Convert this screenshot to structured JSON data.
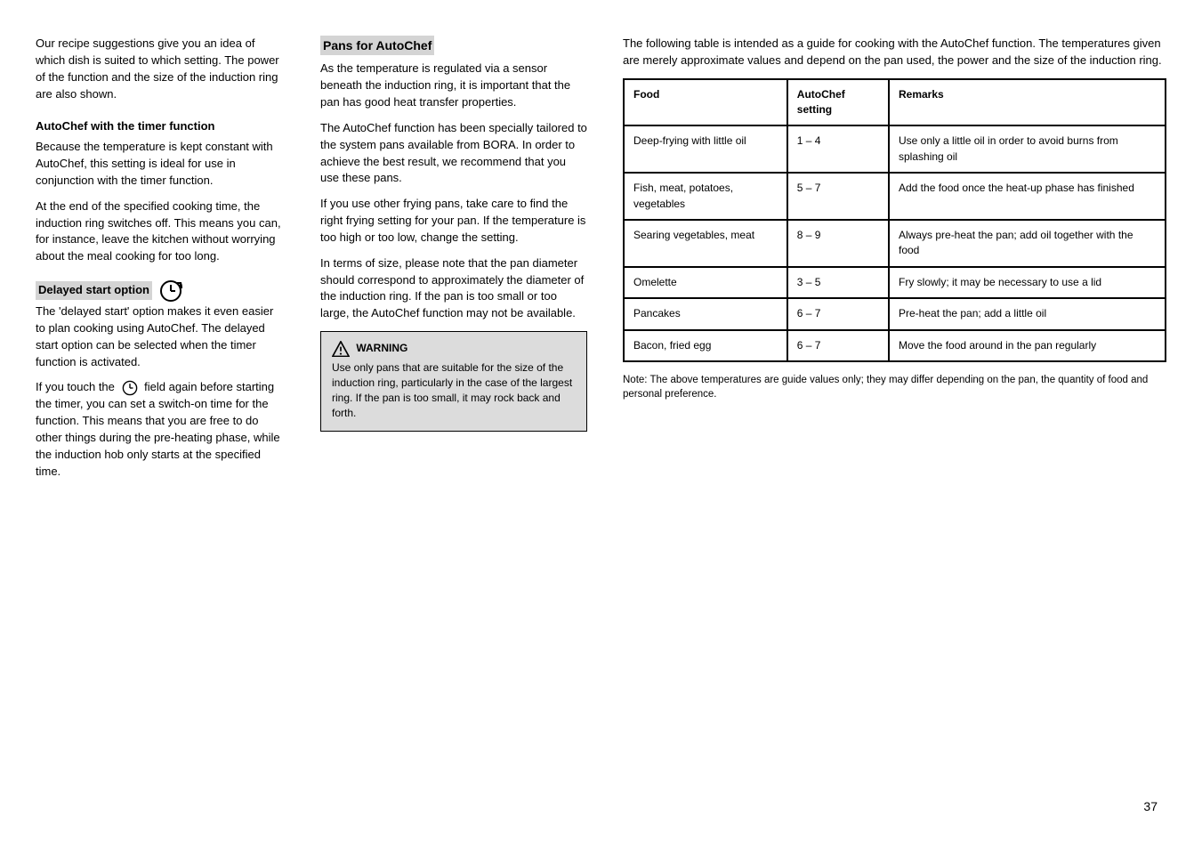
{
  "left": {
    "p1": "Our recipe suggestions give you an idea of which dish is suited to which setting. The power of the function and the size of the induction ring are also shown.",
    "auto_head": "AutoChef with the timer function",
    "auto_body": "Because the temperature is kept constant with AutoChef, this setting is ideal for use in conjunction with the timer function.",
    "p2": "At the end of the specified cooking time, the induction ring switches off. This means you can, for instance, leave the kitchen without worrying about the meal cooking for too long.",
    "delayed_head": "Delayed start option",
    "delayed_body_1": "The 'delayed start' option makes it even easier to plan cooking using AutoChef. The delayed start option can be selected when the timer function is activated.",
    "delayed_body_2": "If you touch the",
    "delayed_body_3": "field again before starting the timer, you can set a switch-on time for the function. This means that you are free to do other things during the pre-heating phase, while the induction hob only starts at the specified time."
  },
  "mid": {
    "pan_head": "Pans for AutoChef",
    "pan_p1": "As the temperature is regulated via a sensor beneath the induction ring, it is important that the pan has good heat transfer properties.",
    "pan_p2": "The AutoChef function has been specially tailored to the system pans available from BORA. In order to achieve the best result, we recommend that you use these pans.",
    "pan_p3": "If you use other frying pans, take care to find the right frying setting for your pan. If the temperature is too high or too low, change the setting.",
    "pan_p4": "In terms of size, please note that the pan diameter should correspond to approximately the diameter of the induction ring. If the pan is too small or too large, the AutoChef function may not be available.",
    "warn_label": "WARNING",
    "warn_body": "Use only pans that are suitable for the size of the induction ring, particularly in the case of the largest ring. If the pan is too small, it may rock back and forth."
  },
  "right": {
    "intro": "The following table is intended as a guide for cooking with the AutoChef function. The temperatures given are merely approximate values and depend on the pan used, the power and the size of the induction ring.",
    "table": {
      "columns": [
        "Food",
        "AutoChef setting",
        "Remarks"
      ],
      "rows": [
        [
          "Deep-frying with little oil",
          "1 – 4",
          "Use only a little oil in order to avoid burns from splashing oil"
        ],
        [
          "Fish, meat, potatoes, vegetables",
          "5 – 7",
          "Add the food once the heat-up phase has finished"
        ],
        [
          "Searing vegetables, meat",
          "8 – 9",
          "Always pre-heat the pan; add oil together with the food"
        ],
        [
          "Omelette",
          "3 – 5",
          "Fry slowly; it may be necessary to use a lid"
        ],
        [
          "Pancakes",
          "6 – 7",
          "Pre-heat the pan; add a little oil"
        ],
        [
          "Bacon, fried egg",
          "6 – 7",
          "Move the food around in the pan regularly"
        ]
      ]
    },
    "note": "Note: The above temperatures are guide values only; they may differ depending on the pan, the quantity of food and personal preference."
  },
  "page_number": "37"
}
